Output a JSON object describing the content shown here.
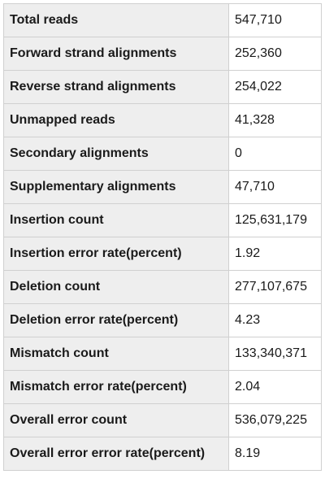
{
  "stats": {
    "rows": [
      {
        "label": "Total reads",
        "value": "547,710"
      },
      {
        "label": "Forward strand alignments",
        "value": "252,360"
      },
      {
        "label": "Reverse strand alignments",
        "value": "254,022"
      },
      {
        "label": "Unmapped reads",
        "value": "41,328"
      },
      {
        "label": "Secondary alignments",
        "value": "0"
      },
      {
        "label": "Supplementary alignments",
        "value": "47,710"
      },
      {
        "label": "Insertion count",
        "value": "125,631,179"
      },
      {
        "label": "Insertion error rate(percent)",
        "value": "1.92"
      },
      {
        "label": "Deletion count",
        "value": "277,107,675"
      },
      {
        "label": "Deletion error rate(percent)",
        "value": "4.23"
      },
      {
        "label": "Mismatch count",
        "value": "133,340,371"
      },
      {
        "label": "Mismatch error rate(percent)",
        "value": "2.04"
      },
      {
        "label": "Overall error count",
        "value": "536,079,225"
      },
      {
        "label": "Overall error error rate(percent)",
        "value": "8.19"
      }
    ]
  }
}
